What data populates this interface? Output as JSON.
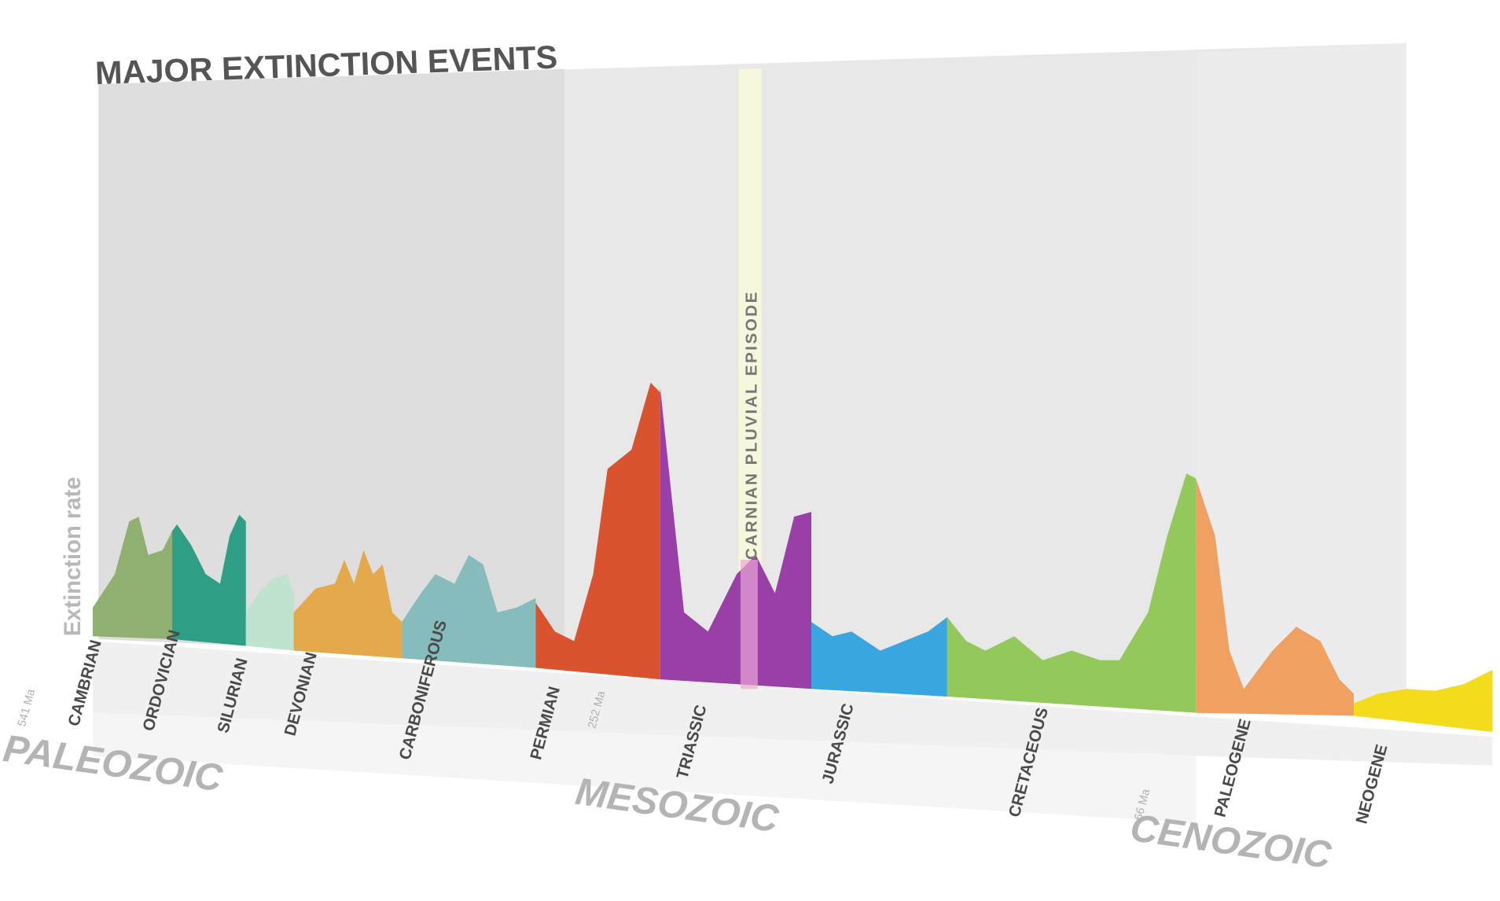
{
  "title": "MAJOR EXTINCTION EVENTS",
  "y_axis_label": "Extinction rate",
  "annotation": "CARNIAN PLUVIAL EPISODE",
  "periods": [
    "CAMBRIAN",
    "ORDOVICIAN",
    "SILURIAN",
    "DEVONIAN",
    "CARBONIFEROUS",
    "PERMIAN",
    "TRIASSIC",
    "JURASSIC",
    "CRETACEOUS",
    "PALEOGENE",
    "NEOGENE"
  ],
  "eras": [
    "PALEOZOIC",
    "MESOZOIC",
    "CENOZOIC"
  ],
  "dates": [
    "541 Ma",
    "252 Ma",
    "66 Ma"
  ]
}
